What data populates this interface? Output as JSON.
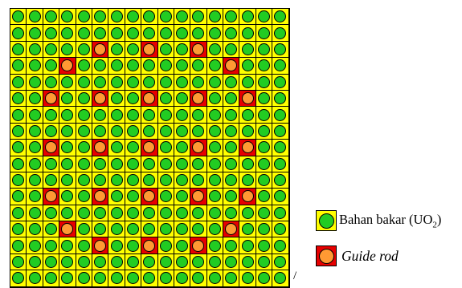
{
  "diagram": {
    "grid_size": 17,
    "guide_rod_positions": [
      [
        2,
        5
      ],
      [
        2,
        8
      ],
      [
        2,
        11
      ],
      [
        3,
        3
      ],
      [
        3,
        13
      ],
      [
        5,
        2
      ],
      [
        5,
        5
      ],
      [
        5,
        8
      ],
      [
        5,
        11
      ],
      [
        5,
        14
      ],
      [
        8,
        2
      ],
      [
        8,
        5
      ],
      [
        8,
        8
      ],
      [
        8,
        11
      ],
      [
        8,
        14
      ],
      [
        11,
        2
      ],
      [
        11,
        5
      ],
      [
        11,
        8
      ],
      [
        11,
        11
      ],
      [
        11,
        14
      ],
      [
        13,
        3
      ],
      [
        13,
        13
      ],
      [
        14,
        5
      ],
      [
        14,
        8
      ],
      [
        14,
        11
      ]
    ],
    "colors": {
      "fuel_cell_background": "#ffff00",
      "guide_cell_background": "#e60000",
      "fuel_pin": "#22cc22",
      "guide_pin": "#ff9933",
      "grid_line": "#000000"
    }
  },
  "legend": {
    "fuel": {
      "label_text": "Bahan bakar (UO",
      "subscript": "2",
      "closing": ")"
    },
    "guide": {
      "label": "Guide rod"
    }
  },
  "stray_mark": "/"
}
